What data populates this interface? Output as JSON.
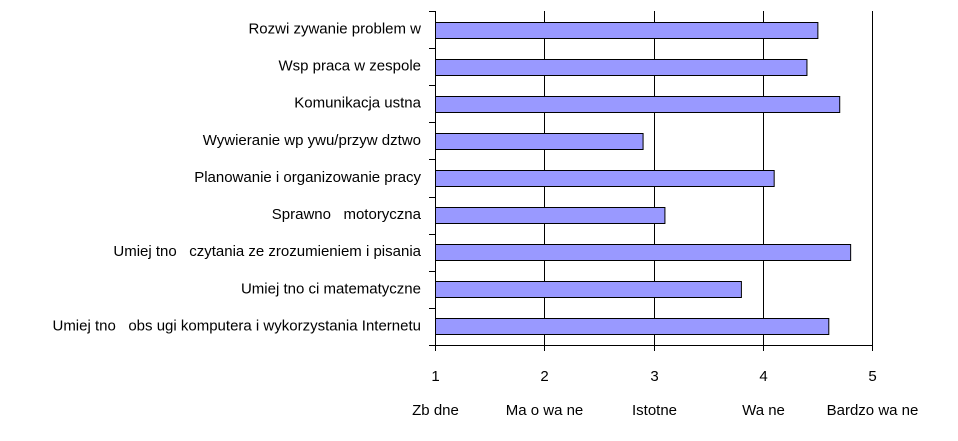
{
  "chart_data": {
    "type": "bar",
    "orientation": "horizontal",
    "categories": [
      "Rozwi zywanie problem w",
      "Wsp praca w zespole",
      "Komunikacja ustna",
      "Wywieranie wp ywu/przyw dztwo",
      "Planowanie i organizowanie pracy",
      "Sprawno   motoryczna",
      "Umiej tno   czytania ze zrozumieniem i pisania",
      "Umiej tno ci matematyczne",
      "Umiej tno   obs ugi komputera i wykorzystania Internetu"
    ],
    "values": [
      4.5,
      4.4,
      4.7,
      2.9,
      4.1,
      3.1,
      4.8,
      3.8,
      4.6
    ],
    "xlim": [
      1,
      5
    ],
    "x_ticks": [
      "1",
      "2",
      "3",
      "4",
      "5"
    ],
    "x_scale_labels": [
      "Zb dne",
      "Ma o wa ne",
      "Istotne",
      "Wa ne",
      "Bardzo wa ne"
    ],
    "grid": true,
    "bar_color": "#9999ff",
    "bar_border_color": "#000000",
    "title": "",
    "xlabel": "",
    "ylabel": ""
  }
}
